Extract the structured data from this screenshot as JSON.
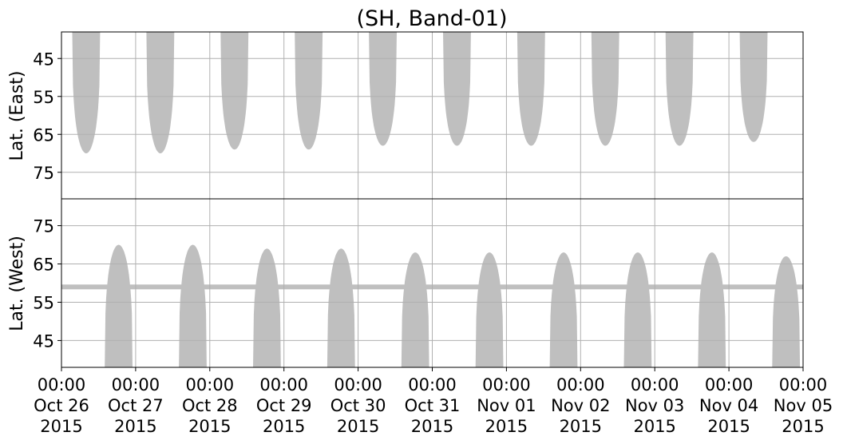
{
  "chart_data": {
    "type": "area",
    "title": "(SH, Band-01)",
    "x_start": "2015-10-26T00:00",
    "x_end": "2015-11-05T00:00",
    "x_ticks": [
      {
        "time": "00:00",
        "date": "Oct 26",
        "year": "2015"
      },
      {
        "time": "00:00",
        "date": "Oct 27",
        "year": "2015"
      },
      {
        "time": "00:00",
        "date": "Oct 28",
        "year": "2015"
      },
      {
        "time": "00:00",
        "date": "Oct 29",
        "year": "2015"
      },
      {
        "time": "00:00",
        "date": "Oct 30",
        "year": "2015"
      },
      {
        "time": "00:00",
        "date": "Oct 31",
        "year": "2015"
      },
      {
        "time": "00:00",
        "date": "Nov 01",
        "year": "2015"
      },
      {
        "time": "00:00",
        "date": "Nov 02",
        "year": "2015"
      },
      {
        "time": "00:00",
        "date": "Nov 03",
        "year": "2015"
      },
      {
        "time": "00:00",
        "date": "Nov 04",
        "year": "2015"
      },
      {
        "time": "00:00",
        "date": "Nov 05",
        "year": "2015"
      }
    ],
    "grid": true,
    "fill_color": "#bfbfbf",
    "panels": [
      {
        "ylabel": "Lat. (East)",
        "ylim": [
          38,
          82
        ],
        "y_inverted": true,
        "yticks": [
          45,
          55,
          65,
          75
        ],
        "coverage_periods": [
          {
            "start": "2015-10-26T03:30",
            "end": "2015-10-26T12:30",
            "max_lat": 70
          },
          {
            "start": "2015-10-27T03:30",
            "end": "2015-10-27T12:30",
            "max_lat": 70
          },
          {
            "start": "2015-10-28T03:30",
            "end": "2015-10-28T12:30",
            "max_lat": 69
          },
          {
            "start": "2015-10-29T03:30",
            "end": "2015-10-29T12:30",
            "max_lat": 69
          },
          {
            "start": "2015-10-30T03:30",
            "end": "2015-10-30T12:30",
            "max_lat": 68
          },
          {
            "start": "2015-10-31T03:30",
            "end": "2015-10-31T12:30",
            "max_lat": 68
          },
          {
            "start": "2015-11-01T03:30",
            "end": "2015-11-01T12:30",
            "max_lat": 68
          },
          {
            "start": "2015-11-02T03:30",
            "end": "2015-11-02T12:30",
            "max_lat": 68
          },
          {
            "start": "2015-11-03T03:30",
            "end": "2015-11-03T12:30",
            "max_lat": 68
          },
          {
            "start": "2015-11-04T03:30",
            "end": "2015-11-04T12:30",
            "max_lat": 67
          }
        ]
      },
      {
        "ylabel": "Lat. (West)",
        "ylim": [
          38,
          82
        ],
        "y_inverted": false,
        "yticks": [
          45,
          55,
          65,
          75
        ],
        "horizontal_band_lat": 59,
        "coverage_periods": [
          {
            "start": "2015-10-26T14:00",
            "end": "2015-10-26T23:00",
            "max_lat": 70
          },
          {
            "start": "2015-10-27T14:00",
            "end": "2015-10-27T23:00",
            "max_lat": 70
          },
          {
            "start": "2015-10-28T14:00",
            "end": "2015-10-28T23:00",
            "max_lat": 69
          },
          {
            "start": "2015-10-29T14:00",
            "end": "2015-10-29T23:00",
            "max_lat": 69
          },
          {
            "start": "2015-10-30T14:00",
            "end": "2015-10-30T23:00",
            "max_lat": 68
          },
          {
            "start": "2015-10-31T14:00",
            "end": "2015-10-31T23:00",
            "max_lat": 68
          },
          {
            "start": "2015-11-01T14:00",
            "end": "2015-11-01T23:00",
            "max_lat": 68
          },
          {
            "start": "2015-11-02T14:00",
            "end": "2015-11-02T23:00",
            "max_lat": 68
          },
          {
            "start": "2015-11-03T14:00",
            "end": "2015-11-03T23:00",
            "max_lat": 68
          },
          {
            "start": "2015-11-04T14:00",
            "end": "2015-11-04T23:00",
            "max_lat": 67
          }
        ]
      }
    ]
  }
}
